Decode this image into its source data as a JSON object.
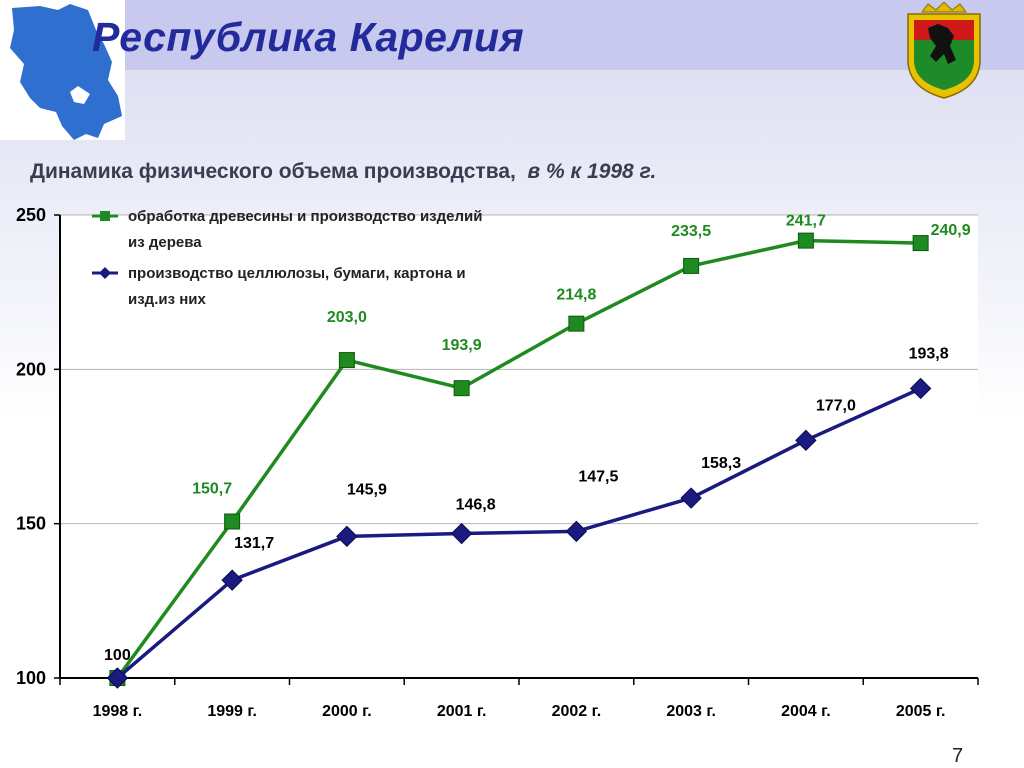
{
  "header": {
    "title": "Республика Карелия",
    "subtitle_main": "Динамика  физического объема производства,",
    "subtitle_unit": "в % к 1998 г."
  },
  "page_number": "7",
  "colors": {
    "series1": "#1f8a1f",
    "series2": "#1a1a80",
    "title": "#232a9a",
    "header_band": "#c7c9ee"
  },
  "chart_data": {
    "type": "line",
    "categories": [
      "1998 г.",
      "1999 г.",
      "2000 г.",
      "2001 г.",
      "2002 г.",
      "2003 г.",
      "2004 г.",
      "2005 г."
    ],
    "ylim": [
      100,
      250
    ],
    "yticks": [
      "100",
      "150",
      "200",
      "250"
    ],
    "grid": true,
    "legend_position": "top-left",
    "series": [
      {
        "name": "обработка древесины и производство изделий из дерева",
        "legend_lines": [
          "обработка древесины и производство изделий",
          "из дерева"
        ],
        "values": [
          100,
          150.7,
          203.0,
          193.9,
          214.8,
          233.5,
          241.7,
          240.9
        ],
        "labels": [
          "100",
          "150,7",
          "203,0",
          "193,9",
          "214,8",
          "233,5",
          "241,7",
          "240,9"
        ],
        "marker": "square",
        "color": "#1f8a1f"
      },
      {
        "name": "производство целлюлозы, бумаги, картона и изд.из них",
        "legend_lines": [
          "производство целлюлозы, бумаги, картона и",
          "изд.из них"
        ],
        "values": [
          100,
          131.7,
          145.9,
          146.8,
          147.5,
          158.3,
          177.0,
          193.8
        ],
        "labels": [
          "",
          "131,7",
          "145,9",
          "146,8",
          "147,5",
          "158,3",
          "177,0",
          "193,8"
        ],
        "marker": "diamond",
        "color": "#1a1a80"
      }
    ]
  }
}
